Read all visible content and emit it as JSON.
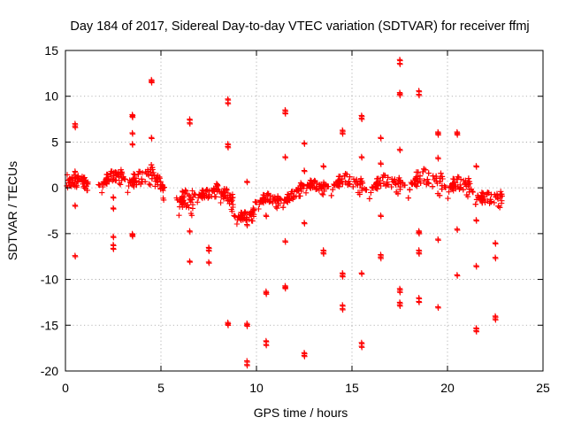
{
  "chart_data": {
    "type": "scatter",
    "title": "Day 184 of 2017, Sidereal Day-to-day VTEC variation (SDTVAR) for receiver ffmj",
    "xlabel": "GPS time / hours",
    "ylabel": "SDTVAR / TECUs",
    "xlim": [
      0,
      25
    ],
    "ylim": [
      -20,
      15
    ],
    "xticks": [
      0,
      5,
      10,
      15,
      20,
      25
    ],
    "yticks": [
      -20,
      -15,
      -10,
      -5,
      0,
      5,
      10,
      15
    ],
    "grid": true,
    "marker": "+",
    "series_color": "#ff0000",
    "bands": [
      {
        "x0": 0.0,
        "x1": 1.2,
        "c0": 0.5,
        "c1": 0.4,
        "spread": 1.2
      },
      {
        "x0": 1.7,
        "x1": 3.0,
        "c0": 0.4,
        "c1": 1.0,
        "spread": 1.2
      },
      {
        "x0": 3.0,
        "x1": 4.6,
        "c0": 0.9,
        "c1": 1.0,
        "spread": 1.6
      },
      {
        "x0": 4.6,
        "x1": 5.2,
        "c0": 1.1,
        "c1": -0.6,
        "spread": 1.3
      },
      {
        "x0": 5.8,
        "x1": 6.7,
        "c0": -1.2,
        "c1": -2.2,
        "spread": 2.0
      },
      {
        "x0": 6.7,
        "x1": 8.0,
        "c0": -1.2,
        "c1": 0.0,
        "spread": 1.0
      },
      {
        "x0": 8.0,
        "x1": 8.8,
        "c0": -0.3,
        "c1": -2.2,
        "spread": 1.4
      },
      {
        "x0": 8.8,
        "x1": 9.9,
        "c0": -3.5,
        "c1": -2.6,
        "spread": 1.0
      },
      {
        "x0": 9.9,
        "x1": 11.2,
        "c0": -1.5,
        "c1": -1.7,
        "spread": 1.0
      },
      {
        "x0": 11.2,
        "x1": 12.4,
        "c0": -1.3,
        "c1": -0.3,
        "spread": 1.0
      },
      {
        "x0": 12.4,
        "x1": 13.6,
        "c0": -0.2,
        "c1": 0.2,
        "spread": 1.0
      },
      {
        "x0": 13.6,
        "x1": 15.6,
        "c0": 0.4,
        "c1": 0.3,
        "spread": 1.3
      },
      {
        "x0": 15.6,
        "x1": 17.6,
        "c0": 0.0,
        "c1": 0.4,
        "spread": 1.3
      },
      {
        "x0": 17.6,
        "x1": 19.8,
        "c0": 0.5,
        "c1": 0.6,
        "spread": 1.8
      },
      {
        "x0": 19.8,
        "x1": 21.2,
        "c0": 0.3,
        "c1": -0.3,
        "spread": 1.5
      },
      {
        "x0": 21.2,
        "x1": 22.9,
        "c0": -0.4,
        "c1": -1.8,
        "spread": 1.3
      }
    ],
    "outliers": [
      [
        0.5,
        7.0
      ],
      [
        0.5,
        6.7
      ],
      [
        0.5,
        -7.4
      ],
      [
        0.5,
        1.8
      ],
      [
        0.5,
        -1.9
      ],
      [
        2.5,
        -5.3
      ],
      [
        2.5,
        -6.2
      ],
      [
        2.5,
        -6.6
      ],
      [
        2.5,
        -2.2
      ],
      [
        2.5,
        -1.0
      ],
      [
        3.5,
        8.0
      ],
      [
        3.5,
        7.8
      ],
      [
        3.5,
        6.0
      ],
      [
        3.5,
        4.8
      ],
      [
        3.5,
        -5.0
      ],
      [
        3.5,
        -5.2
      ],
      [
        4.5,
        11.8
      ],
      [
        4.5,
        11.6
      ],
      [
        4.5,
        5.5
      ],
      [
        6.5,
        7.5
      ],
      [
        6.5,
        7.1
      ],
      [
        6.5,
        -8.0
      ],
      [
        6.5,
        -4.7
      ],
      [
        7.5,
        -8.1
      ],
      [
        7.5,
        -6.8
      ],
      [
        7.5,
        -6.5
      ],
      [
        8.5,
        9.7
      ],
      [
        8.5,
        9.3
      ],
      [
        8.5,
        4.8
      ],
      [
        8.5,
        4.5
      ],
      [
        8.5,
        -14.7
      ],
      [
        8.5,
        -14.9
      ],
      [
        9.5,
        -15.0
      ],
      [
        9.5,
        -14.8
      ],
      [
        9.5,
        -18.9
      ],
      [
        9.5,
        -19.3
      ],
      [
        9.5,
        0.7
      ],
      [
        9.5,
        -4.0
      ],
      [
        10.5,
        -11.3
      ],
      [
        10.5,
        -11.5
      ],
      [
        10.5,
        -16.7
      ],
      [
        10.5,
        -17.1
      ],
      [
        10.5,
        -3.0
      ],
      [
        11.5,
        8.5
      ],
      [
        11.5,
        8.2
      ],
      [
        11.5,
        -10.7
      ],
      [
        11.5,
        -10.9
      ],
      [
        11.5,
        -5.8
      ],
      [
        11.5,
        3.4
      ],
      [
        12.5,
        4.9
      ],
      [
        12.5,
        1.9
      ],
      [
        12.5,
        -3.8
      ],
      [
        12.5,
        -18.0
      ],
      [
        12.5,
        -18.3
      ],
      [
        13.5,
        2.4
      ],
      [
        13.5,
        -6.8
      ],
      [
        13.5,
        -7.1
      ],
      [
        14.5,
        6.3
      ],
      [
        14.5,
        6.0
      ],
      [
        14.5,
        -9.3
      ],
      [
        14.5,
        -9.6
      ],
      [
        14.5,
        -12.8
      ],
      [
        14.5,
        -13.2
      ],
      [
        15.5,
        7.9
      ],
      [
        15.5,
        7.6
      ],
      [
        15.5,
        3.4
      ],
      [
        15.5,
        -9.3
      ],
      [
        15.5,
        -16.9
      ],
      [
        15.5,
        -17.3
      ],
      [
        16.5,
        5.5
      ],
      [
        16.5,
        2.7
      ],
      [
        16.5,
        -3.0
      ],
      [
        16.5,
        -7.3
      ],
      [
        16.5,
        -7.6
      ],
      [
        17.5,
        14.0
      ],
      [
        17.5,
        13.6
      ],
      [
        17.5,
        10.4
      ],
      [
        17.5,
        10.2
      ],
      [
        17.5,
        4.2
      ],
      [
        17.5,
        -11.0
      ],
      [
        17.5,
        -11.3
      ],
      [
        17.5,
        -12.5
      ],
      [
        17.5,
        -12.8
      ],
      [
        18.5,
        10.6
      ],
      [
        18.5,
        10.2
      ],
      [
        18.5,
        -4.7
      ],
      [
        18.5,
        -4.9
      ],
      [
        18.5,
        -6.8
      ],
      [
        18.5,
        -7.1
      ],
      [
        18.5,
        -12.0
      ],
      [
        18.5,
        -12.4
      ],
      [
        19.5,
        6.1
      ],
      [
        19.5,
        5.9
      ],
      [
        19.5,
        3.3
      ],
      [
        19.5,
        -5.6
      ],
      [
        19.5,
        -13.0
      ],
      [
        20.5,
        6.1
      ],
      [
        20.5,
        5.9
      ],
      [
        20.5,
        -4.5
      ],
      [
        20.5,
        -9.5
      ],
      [
        21.5,
        2.4
      ],
      [
        21.5,
        -3.5
      ],
      [
        21.5,
        -8.5
      ],
      [
        21.5,
        -15.3
      ],
      [
        21.5,
        -15.6
      ],
      [
        22.5,
        -6.0
      ],
      [
        22.5,
        -7.6
      ],
      [
        22.5,
        -14.0
      ],
      [
        22.5,
        -14.3
      ]
    ]
  }
}
